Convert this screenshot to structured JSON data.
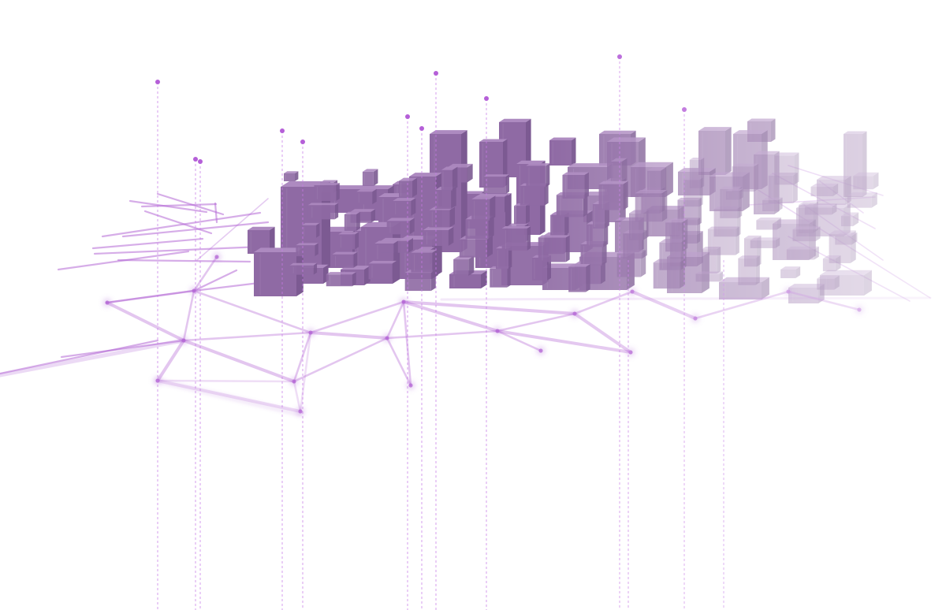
{
  "scene": {
    "colors": {
      "background": "#ffffff",
      "network_line": "#b56ad6",
      "network_node": "#b56ad6",
      "building_top": "#ad8ac0",
      "building_front": "#8f6aa4",
      "building_side": "#7c5a92",
      "pin": "#b55fd8",
      "pin_line": "#c57be6"
    },
    "visible_text": []
  }
}
